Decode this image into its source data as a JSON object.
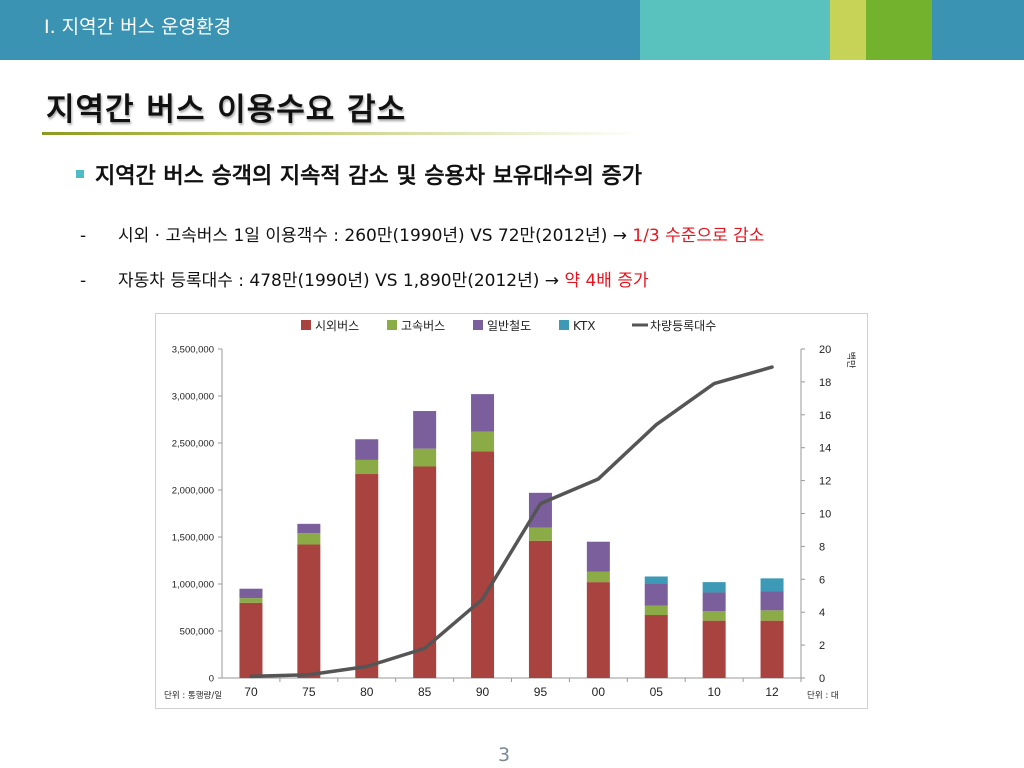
{
  "header": {
    "section_title": "Ⅰ. 지역간 버스 운영환경",
    "colors": {
      "bar": "#3a93b2",
      "teal": "#59c2bf",
      "lime": "#c6d356",
      "green": "#72b22c"
    }
  },
  "slide": {
    "title": "지역간 버스 이용수요 감소",
    "bullet": "지역간 버스 승객의 지속적 감소 및 승용차 보유대수의 증가",
    "items": [
      {
        "dash": "-",
        "text": "시외 · 고속버스 1일 이용객수 : 260만(1990년) VS 72만(2012년) → ",
        "highlight": "1/3 수준으로 감소"
      },
      {
        "dash": "-",
        "text": "자동차 등록대수 : 478만(1990년) VS 1,890만(2012년) → ",
        "highlight": "약 4배 증가"
      }
    ],
    "page_number": "3"
  },
  "chart_data": {
    "type": "bar",
    "stacked": true,
    "categories": [
      "70",
      "75",
      "80",
      "85",
      "90",
      "95",
      "00",
      "05",
      "10",
      "12"
    ],
    "series": [
      {
        "name": "시외버스",
        "color": "#a9433f",
        "values": [
          800000,
          1420000,
          2170000,
          2250000,
          2410000,
          1460000,
          1020000,
          670000,
          610000,
          610000
        ]
      },
      {
        "name": "고속버스",
        "color": "#8aab45",
        "values": [
          50000,
          120000,
          150000,
          190000,
          210000,
          140000,
          110000,
          100000,
          100000,
          110000
        ]
      },
      {
        "name": "일반철도",
        "color": "#7b5f9d",
        "values": [
          100000,
          100000,
          220000,
          400000,
          400000,
          370000,
          320000,
          230000,
          200000,
          200000
        ]
      },
      {
        "name": "KTX",
        "color": "#3d9ab7",
        "values": [
          0,
          0,
          0,
          0,
          0,
          0,
          0,
          80000,
          110000,
          140000
        ]
      }
    ],
    "line_series": {
      "name": "차량등록대수",
      "color": "#555555",
      "axis": "right",
      "values": [
        0.1,
        0.2,
        0.7,
        1.8,
        4.8,
        10.6,
        12.1,
        15.4,
        17.9,
        18.9
      ]
    },
    "y_left": {
      "min": 0,
      "max": 3500000,
      "step": 500000,
      "tick_labels": [
        "0",
        "500,000",
        "1,000,000",
        "1,500,000",
        "2,000,000",
        "2,500,000",
        "3,000,000",
        "3,500,000"
      ]
    },
    "y_right": {
      "min": 0,
      "max": 20,
      "step": 2,
      "tick_labels": [
        "0",
        "2",
        "4",
        "6",
        "8",
        "10",
        "12",
        "14",
        "16",
        "18",
        "20"
      ],
      "label": "백만"
    },
    "unit_left": "단위 : 통행량/일",
    "unit_right": "단위 : 대",
    "legend_position": "top",
    "grid": false
  }
}
